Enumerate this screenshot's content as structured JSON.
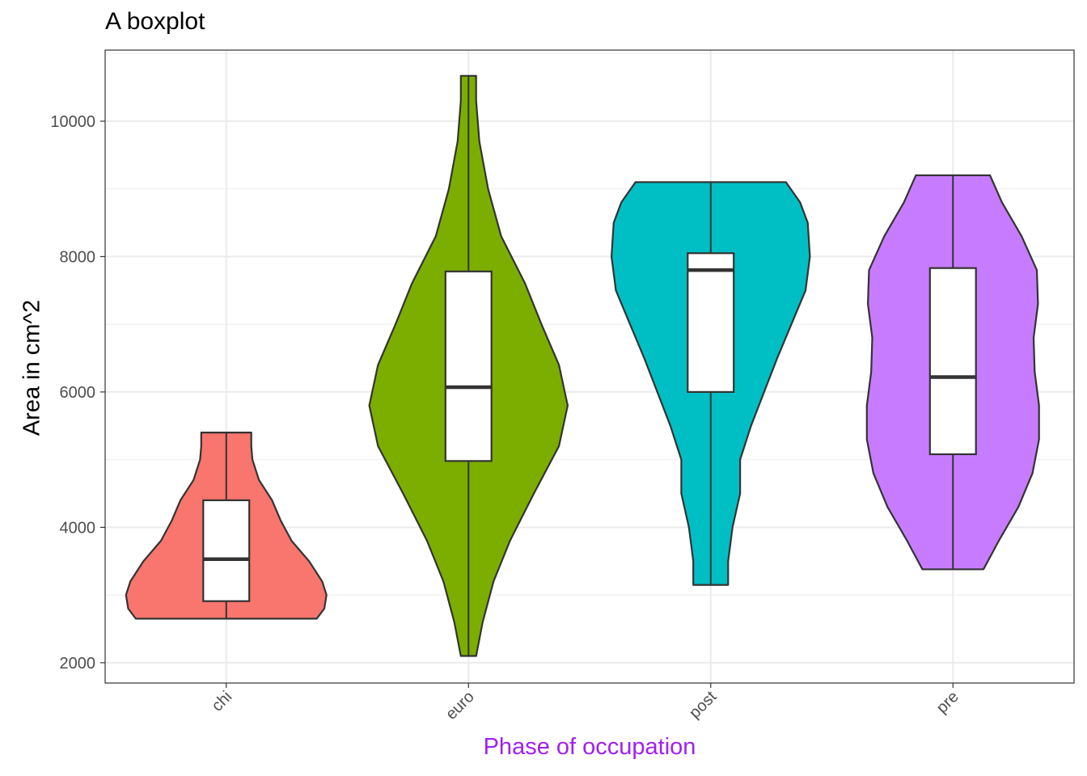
{
  "chart_data": {
    "type": "violin+box",
    "title": "A boxplot",
    "xlabel": "Phase of occupation",
    "ylabel": "Area in cm^2",
    "xlabel_color": "#A020F0",
    "ylim": [
      1700,
      11050
    ],
    "yticks": [
      2000,
      4000,
      6000,
      8000,
      10000
    ],
    "ytick_labels": [
      "2000",
      "4000",
      "6000",
      "8000",
      "10000"
    ],
    "categories": [
      "chi",
      "euro",
      "post",
      "pre"
    ],
    "groups": [
      {
        "name": "chi",
        "color": "#F8766D",
        "min": 2650,
        "q1": 2910,
        "median": 3530,
        "q3": 4400,
        "max": 5400,
        "density": [
          [
            2650,
            0.83
          ],
          [
            2800,
            0.9
          ],
          [
            3000,
            0.92
          ],
          [
            3200,
            0.88
          ],
          [
            3500,
            0.76
          ],
          [
            3800,
            0.6
          ],
          [
            4100,
            0.5
          ],
          [
            4400,
            0.42
          ],
          [
            4700,
            0.3
          ],
          [
            5000,
            0.24
          ],
          [
            5200,
            0.23
          ],
          [
            5400,
            0.23
          ]
        ]
      },
      {
        "name": "euro",
        "color": "#7CAE00",
        "min": 2100,
        "q1": 4980,
        "median": 6070,
        "q3": 7780,
        "max": 10670,
        "density": [
          [
            2100,
            0.07
          ],
          [
            2600,
            0.13
          ],
          [
            3200,
            0.23
          ],
          [
            3800,
            0.38
          ],
          [
            4500,
            0.6
          ],
          [
            5200,
            0.83
          ],
          [
            5800,
            0.91
          ],
          [
            6400,
            0.83
          ],
          [
            7000,
            0.67
          ],
          [
            7600,
            0.52
          ],
          [
            8300,
            0.3
          ],
          [
            9000,
            0.18
          ],
          [
            9700,
            0.1
          ],
          [
            10300,
            0.07
          ],
          [
            10670,
            0.07
          ]
        ]
      },
      {
        "name": "post",
        "color": "#00BFC4",
        "min": 3150,
        "q1": 6000,
        "median": 7800,
        "q3": 8050,
        "max": 9100,
        "density": [
          [
            3150,
            0.16
          ],
          [
            3500,
            0.16
          ],
          [
            4000,
            0.2
          ],
          [
            4500,
            0.27
          ],
          [
            5000,
            0.27
          ],
          [
            5500,
            0.37
          ],
          [
            6000,
            0.49
          ],
          [
            6500,
            0.61
          ],
          [
            7000,
            0.74
          ],
          [
            7500,
            0.87
          ],
          [
            8000,
            0.91
          ],
          [
            8500,
            0.89
          ],
          [
            8800,
            0.82
          ],
          [
            9100,
            0.69
          ]
        ]
      },
      {
        "name": "pre",
        "color": "#C77CFF",
        "min": 3380,
        "q1": 5080,
        "median": 6220,
        "q3": 7830,
        "max": 9200,
        "density": [
          [
            3380,
            0.28
          ],
          [
            3800,
            0.42
          ],
          [
            4300,
            0.6
          ],
          [
            4800,
            0.73
          ],
          [
            5300,
            0.79
          ],
          [
            5800,
            0.79
          ],
          [
            6300,
            0.75
          ],
          [
            6800,
            0.74
          ],
          [
            7300,
            0.78
          ],
          [
            7800,
            0.77
          ],
          [
            8300,
            0.63
          ],
          [
            8800,
            0.45
          ],
          [
            9200,
            0.34
          ]
        ]
      }
    ]
  }
}
